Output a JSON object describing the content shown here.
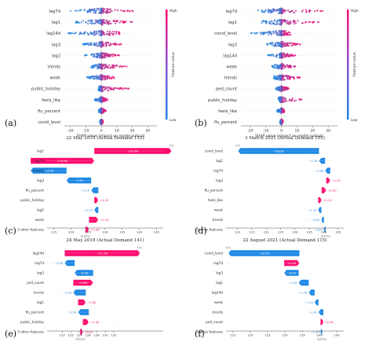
{
  "colors": {
    "high": "#ff0b6e",
    "low": "#1e88e5",
    "mid": "#8b52d6",
    "text": "#333333",
    "axis": "#555555"
  },
  "colorbar": {
    "high_label": "High",
    "low_label": "Low",
    "title": "Feature value"
  },
  "chart_data": [
    {
      "type": "scatter",
      "subtype": "shap-beeswarm",
      "panel_label": "(a)",
      "features": [
        "lag7d",
        "lag1",
        "lag14d",
        "lag3",
        "lag2",
        "trends",
        "week",
        "public_holiday",
        "feels_like",
        "flu_percent",
        "covid_level"
      ],
      "xlabel": "SHAP value (impact on model output)",
      "xticks": [
        -20,
        -10,
        0,
        10,
        20,
        30
      ],
      "xlim": [
        -24,
        36
      ],
      "spread": [
        [
          -22,
          22
        ],
        [
          -17,
          21
        ],
        [
          -22,
          12
        ],
        [
          -12,
          14
        ],
        [
          -11,
          12
        ],
        [
          -7,
          17
        ],
        [
          -10,
          9
        ],
        [
          -2,
          18
        ],
        [
          -5,
          4
        ],
        [
          -2,
          3
        ],
        [
          -1,
          1
        ]
      ]
    },
    {
      "type": "scatter",
      "subtype": "shap-beeswarm",
      "panel_label": "(b)",
      "features": [
        "lag7d",
        "lag1",
        "covid_level",
        "lag3",
        "lag14d",
        "week",
        "trends",
        "ped_count",
        "public_holiday",
        "feels_like",
        "flu_percent"
      ],
      "xlabel": "SHAP value (impact on model output)",
      "xticks": [
        -20,
        -10,
        0,
        10,
        20,
        30
      ],
      "xlim": [
        -26,
        36
      ],
      "spread": [
        [
          -15,
          28
        ],
        [
          -13,
          24
        ],
        [
          -20,
          6
        ],
        [
          -10,
          13
        ],
        [
          -9,
          9
        ],
        [
          -6,
          9
        ],
        [
          -5,
          12
        ],
        [
          -4,
          5
        ],
        [
          -2,
          14
        ],
        [
          -3,
          2
        ],
        [
          -1,
          1
        ]
      ]
    },
    {
      "type": "bar",
      "subtype": "shap-waterfall",
      "panel_label": "(c)",
      "title": "22 May 2019 (Actual Demand 133)",
      "base_label": "E[f(X)]",
      "base": 124.2,
      "rows": [
        {
          "feature": "lag1",
          "value": "",
          "shap": 22.6
        },
        {
          "feature": "lag7d",
          "value": "",
          "shap": 18.6
        },
        {
          "feature": "trends",
          "value": "",
          "shap": -10.5
        },
        {
          "feature": "lag3",
          "value": "",
          "shap": -7.2
        },
        {
          "feature": "flu_percent",
          "value": "",
          "shap": -2.1
        },
        {
          "feature": "public_holiday",
          "value": "",
          "shap": 1.2
        },
        {
          "feature": "lag2",
          "value": "",
          "shap": -1.2
        },
        {
          "feature": "week",
          "value": "",
          "shap": 2.74
        },
        {
          "feature": "3 other features",
          "value": "",
          "shap": 1.06
        }
      ],
      "xticks": [
        115,
        120,
        125,
        130,
        135,
        140,
        145
      ],
      "xlim": [
        113,
        147
      ]
    },
    {
      "type": "bar",
      "subtype": "shap-waterfall",
      "panel_label": "(d)",
      "title": "3 March 2021 (Actual Demand 105)",
      "base_label": "E[f(X)]",
      "base": 140.7,
      "rows": [
        {
          "feature": "covid_level",
          "value": "",
          "shap": -28.2
        },
        {
          "feature": "lag1",
          "value": "",
          "shap": -2.1
        },
        {
          "feature": "lag7d",
          "value": "",
          "shap": -1.8
        },
        {
          "feature": "lag3",
          "value": "",
          "shap": 1.4
        },
        {
          "feature": "flu_percent",
          "value": "",
          "shap": 1.6
        },
        {
          "feature": "feels_like",
          "value": "",
          "shap": 1.2
        },
        {
          "feature": "week",
          "value": "",
          "shap": -1.1
        },
        {
          "feature": "trends",
          "value": "",
          "shap": -0.9
        },
        {
          "feature": "3 other features",
          "value": "",
          "shap": -0.6
        }
      ],
      "xticks": [
        110,
        115,
        120,
        125,
        130,
        135,
        140,
        145
      ],
      "xlim": [
        106,
        147
      ]
    },
    {
      "type": "bar",
      "subtype": "shap-waterfall",
      "panel_label": "(e)",
      "title": "24 May 2019 (Actual Demand 141)",
      "base_label": "E[f(X)]",
      "base": 124.2,
      "rows": [
        {
          "feature": "lag14d",
          "value": "",
          "shap": 17.5
        },
        {
          "feature": "lag7d",
          "value": "",
          "shap": -2.3
        },
        {
          "feature": "lag3",
          "value": "",
          "shap": -4.3
        },
        {
          "feature": "ped_count",
          "value": "",
          "shap": 4.6
        },
        {
          "feature": "trends",
          "value": "",
          "shap": -2.9
        },
        {
          "feature": "lag1",
          "value": "",
          "shap": 1.8
        },
        {
          "feature": "flu_percent",
          "value": "",
          "shap": -2.5
        },
        {
          "feature": "public_holiday",
          "value": "",
          "shap": 1.4
        },
        {
          "feature": "3 other features",
          "value": "",
          "shap": 0.6
        }
      ],
      "xticks": [
        120,
        122,
        124,
        126,
        128,
        130,
        132
      ],
      "xlim": [
        116.5,
        143.5
      ]
    },
    {
      "type": "bar",
      "subtype": "shap-waterfall",
      "panel_label": "(f)",
      "title": "22 August 2021 (Actual Demand 115)",
      "base_label": "E[f(X)]",
      "base": 140.7,
      "rows": [
        {
          "feature": "covid_level",
          "value": "",
          "shap": -20.5
        },
        {
          "feature": "lag7d",
          "value": "",
          "shap": 4.4
        },
        {
          "feature": "lag3",
          "value": "",
          "shap": -4.2
        },
        {
          "feature": "lag1",
          "value": "",
          "shap": -2.9
        },
        {
          "feature": "lag14d",
          "value": "",
          "shap": -1.7
        },
        {
          "feature": "week",
          "value": "",
          "shap": -1.1
        },
        {
          "feature": "trends",
          "value": "",
          "shap": -1.4
        },
        {
          "feature": "ped_count",
          "value": "",
          "shap": 0.8
        },
        {
          "feature": "3 other features",
          "value": "",
          "shap": -0.4
        }
      ],
      "xticks": [
        115,
        120,
        125,
        130,
        135,
        140,
        145
      ],
      "xlim": [
        113,
        147
      ]
    }
  ]
}
